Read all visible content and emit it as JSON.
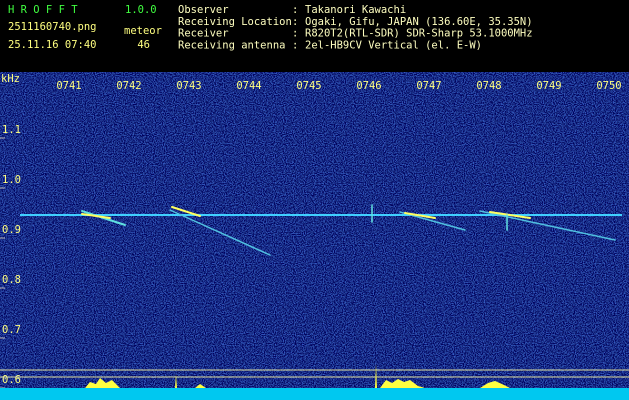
{
  "header": {
    "app_name": "H R O F F T",
    "version": "1.0.0",
    "filename": "2511160740.png",
    "datetime": "25.11.16 07:40",
    "meteor_label": "meteor",
    "meteor_count": "46"
  },
  "info": {
    "separator": ":",
    "rows": [
      [
        "Observer",
        "Takanori Kawachi"
      ],
      [
        "Receiving Location",
        "Ogaki, Gifu, JAPAN (136.60E, 35.35N)"
      ],
      [
        "Receiver",
        "R820T2(RTL-SDR) SDR-Sharp 53.1000MHz"
      ],
      [
        "Receiving antenna",
        "2el-HB9CV Vertical (el. E-W)"
      ]
    ]
  },
  "spectrogram": {
    "unit": "kHz",
    "time_labels": [
      "0741",
      "0742",
      "0743",
      "0744",
      "0745",
      "0746",
      "0747",
      "0748",
      "0749",
      "0750"
    ],
    "freq_labels": [
      "1.1",
      "1.0",
      "0.9",
      "0.8",
      "0.7",
      "0.6"
    ]
  }
}
